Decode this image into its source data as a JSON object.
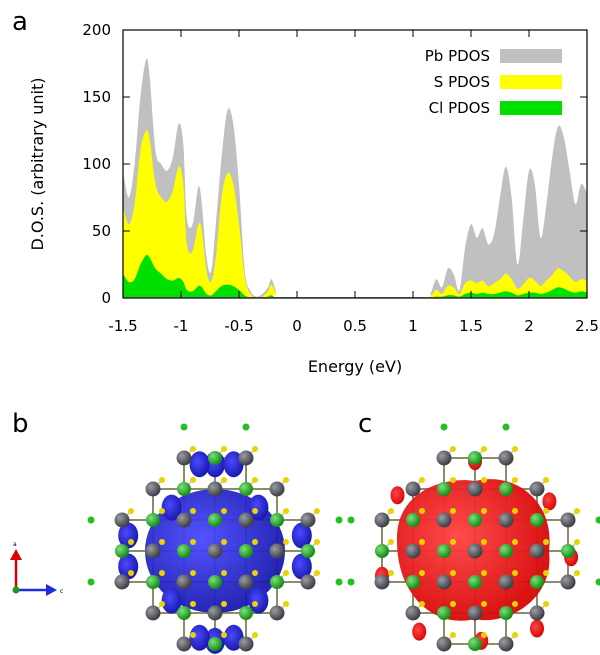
{
  "panels": {
    "a": "a",
    "b": "b",
    "c": "c"
  },
  "colors": {
    "pb": "#c0c0c0",
    "s": "#ffff00",
    "cl": "#00e000",
    "density_b": "#2222cc",
    "density_c": "#ee1111",
    "atom_pb": "#55575c",
    "atom_s": "#e8d400",
    "atom_cl": "#1fc21f",
    "bond": "#8c8c6a"
  },
  "axes_icon": {
    "up_label": "a",
    "right_label": "c"
  },
  "chart_data": {
    "type": "area",
    "title": "",
    "xlabel": "Energy (eV)",
    "ylabel": "D.O.S. (arbitrary unit)",
    "xlim": [
      -1.5,
      2.5
    ],
    "ylim": [
      0,
      200
    ],
    "xticks": [
      -1.5,
      -1,
      -0.5,
      0,
      0.5,
      1,
      1.5,
      2,
      2.5
    ],
    "xtick_labels": [
      "-1.5",
      "-1",
      "-0.5",
      "0",
      "0.5",
      "1",
      "1.5",
      "2",
      "2.5"
    ],
    "yticks": [
      0,
      50,
      100,
      150,
      200
    ],
    "ytick_labels": [
      "0",
      "50",
      "100",
      "150",
      "200"
    ],
    "legend_position": "top-right",
    "series": [
      {
        "name": "Pb PDOS",
        "color": "#c0c0c0",
        "x": [
          -1.5,
          -1.45,
          -1.4,
          -1.35,
          -1.3,
          -1.27,
          -1.22,
          -1.17,
          -1.12,
          -1.07,
          -1.02,
          -0.98,
          -0.95,
          -0.9,
          -0.85,
          -0.82,
          -0.78,
          -0.74,
          -0.7,
          -0.65,
          -0.6,
          -0.55,
          -0.5,
          -0.45,
          -0.4,
          -0.35,
          -0.3,
          -0.25,
          -0.22,
          -0.18,
          -0.15,
          1.1,
          1.15,
          1.2,
          1.25,
          1.3,
          1.35,
          1.4,
          1.45,
          1.5,
          1.55,
          1.6,
          1.65,
          1.7,
          1.75,
          1.8,
          1.85,
          1.9,
          1.95,
          2.0,
          2.05,
          2.1,
          2.15,
          2.2,
          2.25,
          2.3,
          2.35,
          2.4,
          2.45,
          2.5
        ],
        "values": [
          95,
          75,
          100,
          150,
          178,
          165,
          110,
          100,
          95,
          105,
          130,
          115,
          60,
          55,
          83,
          70,
          30,
          20,
          55,
          105,
          140,
          130,
          85,
          20,
          5,
          1,
          3,
          8,
          14,
          5,
          0,
          0,
          3,
          14,
          8,
          22,
          18,
          6,
          38,
          55,
          45,
          52,
          40,
          48,
          75,
          98,
          75,
          25,
          58,
          95,
          85,
          45,
          70,
          105,
          128,
          120,
          95,
          70,
          85,
          78
        ]
      },
      {
        "name": "S PDOS",
        "color": "#ffff00",
        "x": [
          -1.5,
          -1.45,
          -1.4,
          -1.35,
          -1.3,
          -1.27,
          -1.22,
          -1.17,
          -1.12,
          -1.07,
          -1.02,
          -0.98,
          -0.95,
          -0.9,
          -0.85,
          -0.82,
          -0.78,
          -0.74,
          -0.7,
          -0.65,
          -0.6,
          -0.55,
          -0.5,
          -0.45,
          -0.4,
          -0.35,
          -0.3,
          -0.25,
          -0.22,
          -0.18,
          -0.15,
          1.1,
          1.15,
          1.2,
          1.25,
          1.3,
          1.35,
          1.4,
          1.45,
          1.5,
          1.55,
          1.6,
          1.65,
          1.7,
          1.75,
          1.8,
          1.85,
          1.9,
          1.95,
          2.0,
          2.05,
          2.1,
          2.15,
          2.2,
          2.25,
          2.3,
          2.35,
          2.4,
          2.45,
          2.5
        ],
        "values": [
          68,
          55,
          70,
          110,
          125,
          118,
          85,
          75,
          72,
          80,
          98,
          85,
          40,
          35,
          55,
          50,
          20,
          12,
          30,
          75,
          93,
          85,
          55,
          15,
          3,
          0,
          1,
          5,
          10,
          3,
          0,
          0,
          1,
          6,
          3,
          9,
          8,
          3,
          11,
          13,
          11,
          13,
          9,
          11,
          14,
          18,
          14,
          7,
          10,
          15,
          13,
          9,
          13,
          17,
          22,
          20,
          16,
          12,
          14,
          13
        ]
      },
      {
        "name": "Cl PDOS",
        "color": "#00e000",
        "x": [
          -1.5,
          -1.45,
          -1.4,
          -1.35,
          -1.3,
          -1.27,
          -1.22,
          -1.17,
          -1.12,
          -1.07,
          -1.02,
          -0.98,
          -0.95,
          -0.9,
          -0.85,
          -0.82,
          -0.78,
          -0.74,
          -0.7,
          -0.65,
          -0.6,
          -0.55,
          -0.5,
          -0.45,
          -0.4,
          -0.35,
          -0.3,
          -0.25,
          -0.22,
          -0.18,
          -0.15,
          1.1,
          1.15,
          1.2,
          1.25,
          1.3,
          1.35,
          1.4,
          1.45,
          1.5,
          1.55,
          1.6,
          1.65,
          1.7,
          1.75,
          1.8,
          1.85,
          1.9,
          1.95,
          2.0,
          2.05,
          2.1,
          2.15,
          2.2,
          2.25,
          2.3,
          2.35,
          2.4,
          2.45,
          2.5
        ],
        "values": [
          18,
          12,
          14,
          25,
          32,
          30,
          22,
          18,
          14,
          13,
          15,
          12,
          6,
          5,
          9,
          8,
          3,
          2,
          5,
          9,
          10,
          9,
          6,
          2,
          0,
          0,
          0,
          1,
          2,
          0,
          0,
          0,
          0,
          1,
          1,
          2,
          2,
          1,
          3,
          4,
          3,
          4,
          3,
          3,
          4,
          5,
          4,
          2,
          3,
          4,
          4,
          3,
          4,
          6,
          8,
          7,
          5,
          4,
          5,
          4
        ]
      }
    ]
  }
}
